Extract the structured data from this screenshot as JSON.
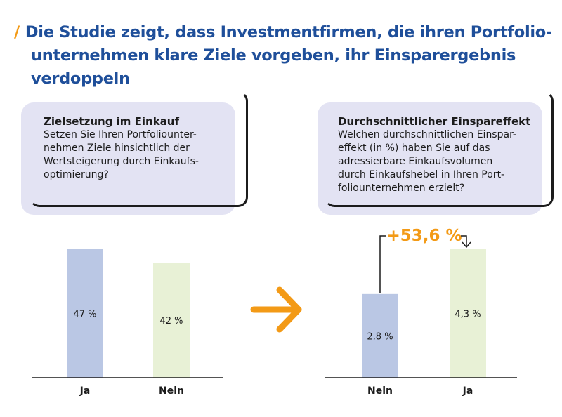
{
  "headline": {
    "line1": "Die Studie zeigt, dass Investmentfirmen, die ihren Portfolio-",
    "line2": "unternehmen klare Ziele vorgeben, ihr Einsparergebnis verdoppeln"
  },
  "left_box": {
    "title": "Zielsetzung im Einkauf",
    "lines": [
      "Setzen Sie Ihren Portfoliounter-",
      "nehmen Ziele hinsichtlich der",
      "Wertsteigerung durch Einkaufs-",
      "optimierung?"
    ]
  },
  "right_box": {
    "title": "Durchschnittlicher Einspareffekt",
    "lines": [
      "Welchen durchschnittlichen Einspar-",
      "effekt (in %) haben Sie auf das",
      "adressierbare Einkaufsvolumen",
      "durch Einkaufshebel in Ihren Port-",
      "foliounternehmen erzielt?"
    ]
  },
  "colors": {
    "blue_bar": "#bac7e4",
    "green_bar": "#e8f1d6",
    "accent": "#f39a16",
    "headline": "#1f4f9a"
  },
  "chart_data": [
    {
      "type": "bar",
      "categories": [
        "Ja",
        "Nein"
      ],
      "values": [
        47,
        42
      ],
      "labels": [
        "47 %",
        "42 %"
      ],
      "ylim": [
        0,
        47
      ]
    },
    {
      "type": "bar",
      "categories": [
        "Nein",
        "Ja"
      ],
      "values": [
        2.8,
        4.3
      ],
      "labels": [
        "2,8 %",
        "4,3 %"
      ],
      "ylim": [
        0,
        4.3
      ],
      "annotation": "+53,6 %"
    }
  ]
}
